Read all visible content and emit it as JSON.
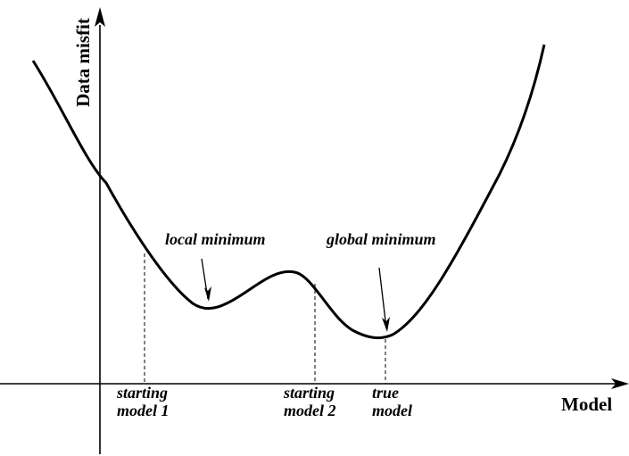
{
  "axes": {
    "y_label": "Data misfit",
    "x_label": "Model"
  },
  "annotations": {
    "local_minimum": "local minimum",
    "global_minimum": "global minimum",
    "starting_model_1": [
      "starting",
      "model 1"
    ],
    "starting_model_2": [
      "starting",
      "model 2"
    ],
    "true_model": [
      "true",
      "model"
    ]
  },
  "colors": {
    "curve": "#000000",
    "axes": "#000000",
    "background": "#ffffff"
  }
}
